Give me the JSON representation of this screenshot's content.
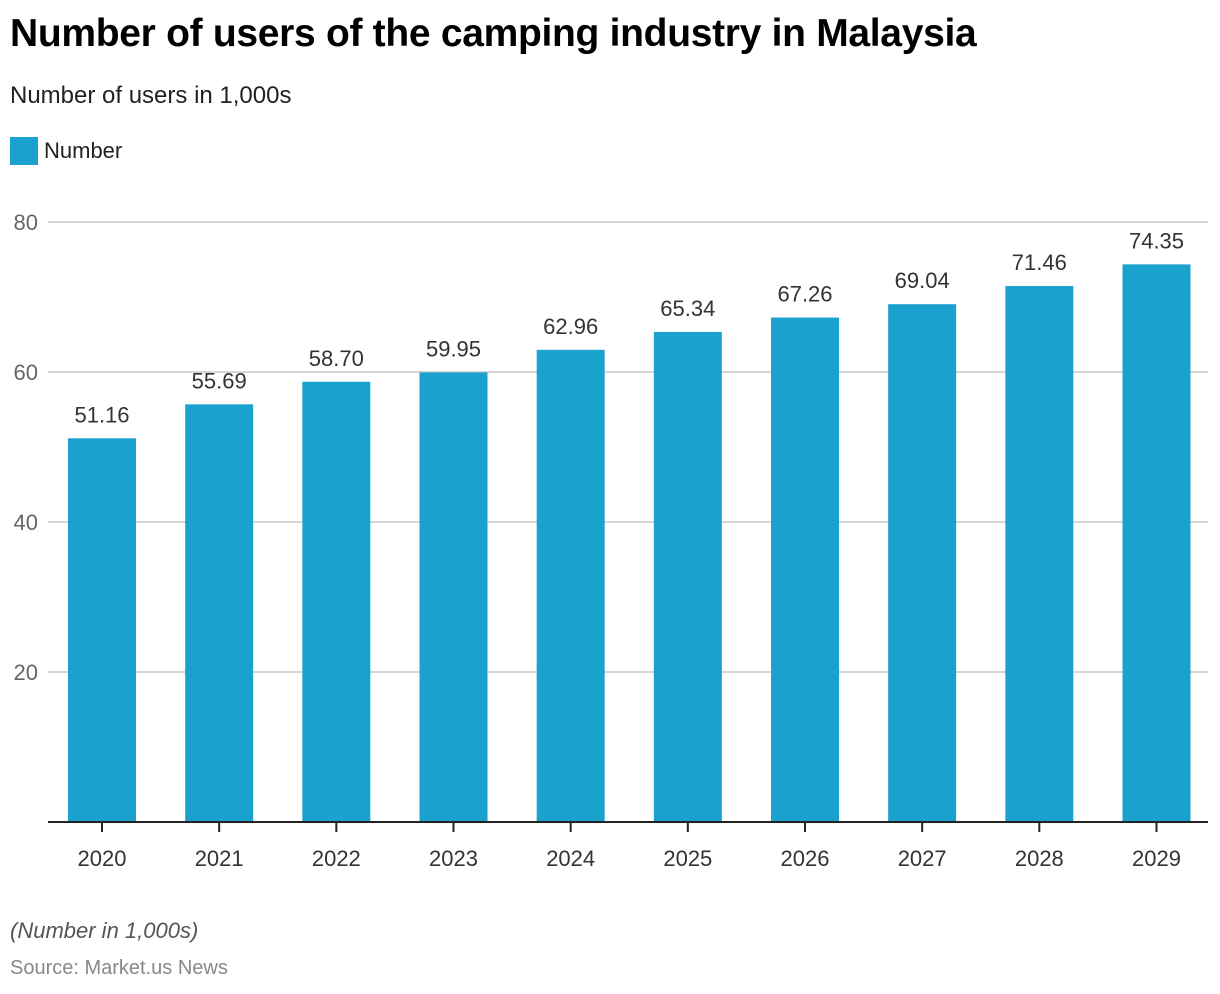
{
  "header": {
    "title": "Number of users of the camping industry in Malaysia",
    "subtitle": "Number of users in 1,000s"
  },
  "legend": {
    "items": [
      {
        "label": "Number",
        "color": "#1aa1cd"
      }
    ]
  },
  "footer": {
    "note": "(Number in 1,000s)",
    "source": "Source: Market.us News"
  },
  "chart_data": {
    "type": "bar",
    "title": "Number of users of the camping industry in Malaysia",
    "subtitle": "Number of users in 1,000s",
    "xlabel": "",
    "ylabel": "",
    "categories": [
      "2020",
      "2021",
      "2022",
      "2023",
      "2024",
      "2025",
      "2026",
      "2027",
      "2028",
      "2029"
    ],
    "series": [
      {
        "name": "Number",
        "color": "#1aa1cd",
        "values": [
          51.16,
          55.69,
          58.7,
          59.95,
          62.96,
          65.34,
          67.26,
          69.04,
          71.46,
          74.35
        ],
        "labels": [
          "51.16",
          "55.69",
          "58.70",
          "59.95",
          "62.96",
          "65.34",
          "67.26",
          "69.04",
          "71.46",
          "74.35"
        ]
      }
    ],
    "ylim": [
      0,
      80
    ],
    "yticks": [
      20,
      40,
      60,
      80
    ],
    "grid": true,
    "legend_position": "top-left"
  }
}
